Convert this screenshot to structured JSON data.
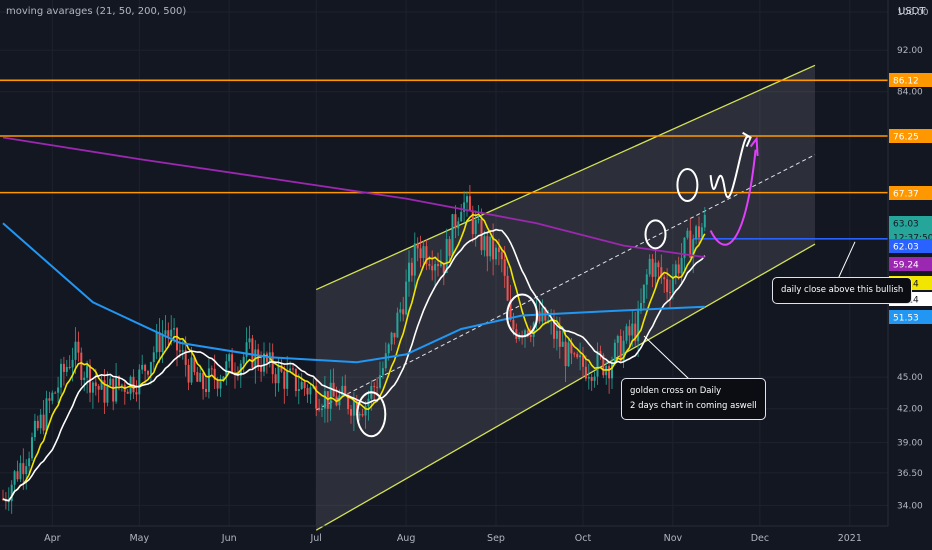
{
  "title": "moving avarages (21, 50, 200, 500)",
  "currency": "USDT",
  "colors": {
    "background": "#131722",
    "grid": "#1e222d",
    "bull": "#26a69a",
    "bear": "#ef5350",
    "ma21": "#f2e600",
    "ma50": "#ffffff",
    "ma200": "#2196f3",
    "ma500": "#9c27b0",
    "resistance": "#ff9800",
    "channel": "#d4e157",
    "support_line": "#2962ff"
  },
  "chart_data": {
    "type": "candlestick",
    "x_ticks": [
      "Apr",
      "May",
      "Jun",
      "Jul",
      "Aug",
      "Sep",
      "Oct",
      "Nov",
      "Dec",
      "2021"
    ],
    "y_ticks": [
      "100.00",
      "92.00",
      "84.00",
      "45.00",
      "42.00",
      "39.00",
      "36.50",
      "34.00"
    ],
    "y_scale": "log",
    "y_range": [
      32.5,
      100
    ],
    "horizontal_levels": [
      {
        "value": 86.12,
        "label": "86.12"
      },
      {
        "value": 76.25,
        "label": "76.25"
      },
      {
        "value": 67.37,
        "label": "67.37"
      }
    ],
    "support_level": 60.9,
    "price_labels": [
      {
        "label": "63.03",
        "value": 63.03,
        "color": "#26a69a"
      },
      {
        "label": "12:37:50",
        "value": 61.2,
        "color": "#26a69a"
      },
      {
        "label": "62.03",
        "value": 59.9,
        "color": "#2962ff"
      },
      {
        "label": "59.24",
        "value": 57.6,
        "color": "#9c27b0"
      },
      {
        "label": "57.14",
        "value": 55.3,
        "color": "#f2e600"
      },
      {
        "label": "54.14",
        "value": 53.4,
        "color": "#ffffff"
      },
      {
        "label": "51.53",
        "value": 51.3,
        "color": "#2196f3"
      }
    ],
    "moving_averages": [
      {
        "period": 21,
        "color": "#f2e600"
      },
      {
        "period": 50,
        "color": "#ffffff"
      },
      {
        "period": 200,
        "color": "#2196f3"
      },
      {
        "period": 500,
        "color": "#9c27b0"
      }
    ],
    "close_path": [
      {
        "date": "2020-03-15",
        "close": 34.5
      },
      {
        "date": "2020-03-25",
        "close": 39.0
      },
      {
        "date": "2020-04-08",
        "close": 47.5
      },
      {
        "date": "2020-04-18",
        "close": 43.5
      },
      {
        "date": "2020-05-01",
        "close": 45.0
      },
      {
        "date": "2020-05-10",
        "close": 50.0
      },
      {
        "date": "2020-05-22",
        "close": 44.0
      },
      {
        "date": "2020-06-08",
        "close": 47.5
      },
      {
        "date": "2020-06-20",
        "close": 45.0
      },
      {
        "date": "2020-07-05",
        "close": 43.0
      },
      {
        "date": "2020-07-18",
        "close": 42.5
      },
      {
        "date": "2020-07-25",
        "close": 46.5
      },
      {
        "date": "2020-08-05",
        "close": 60.0
      },
      {
        "date": "2020-08-14",
        "close": 58.0
      },
      {
        "date": "2020-08-20",
        "close": 66.5
      },
      {
        "date": "2020-08-28",
        "close": 60.0
      },
      {
        "date": "2020-09-03",
        "close": 58.0
      },
      {
        "date": "2020-09-06",
        "close": 50.0
      },
      {
        "date": "2020-09-18",
        "close": 51.0
      },
      {
        "date": "2020-09-28",
        "close": 46.0
      },
      {
        "date": "2020-10-10",
        "close": 46.5
      },
      {
        "date": "2020-10-20",
        "close": 50.5
      },
      {
        "date": "2020-10-24",
        "close": 58.0
      },
      {
        "date": "2020-10-30",
        "close": 55.0
      },
      {
        "date": "2020-11-06",
        "close": 60.0
      },
      {
        "date": "2020-11-12",
        "close": 63.0
      }
    ],
    "annotations": [
      {
        "text": [
          "daily close above this bullish"
        ]
      },
      {
        "text": [
          "golden cross on Daily",
          "2 days chart in coming aswell"
        ]
      }
    ]
  }
}
